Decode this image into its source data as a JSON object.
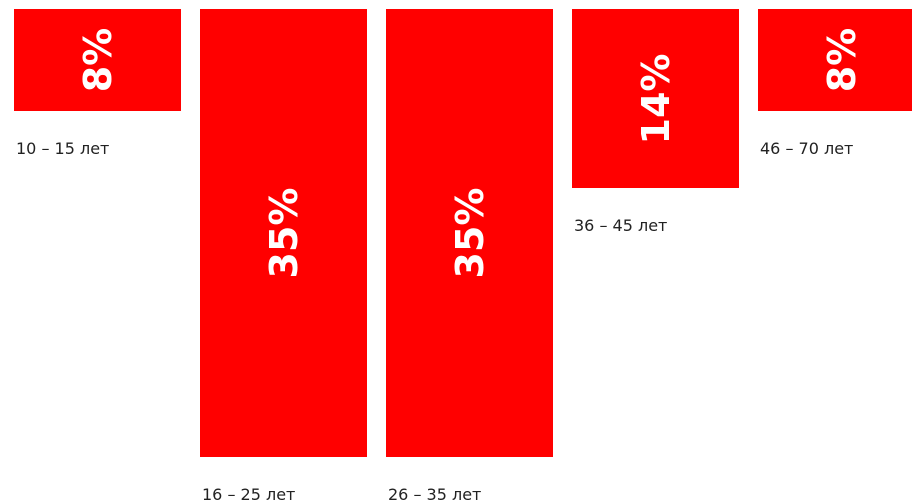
{
  "chart_data": {
    "type": "bar",
    "categories": [
      "10 – 15 лет",
      "16 – 25 лет",
      "26 – 35 лет",
      "36 – 45 лет",
      "46 – 70 лет"
    ],
    "values": [
      8,
      35,
      35,
      14,
      8
    ],
    "value_labels": [
      "8%",
      "35%",
      "35%",
      "14%",
      "8%"
    ],
    "unit": "%",
    "orientation": "vertical-down",
    "grid": false,
    "axes_visible": false,
    "bar_color": "#ff0000",
    "value_label_color": "#ffffff",
    "value_label_rotation": "vertical"
  }
}
